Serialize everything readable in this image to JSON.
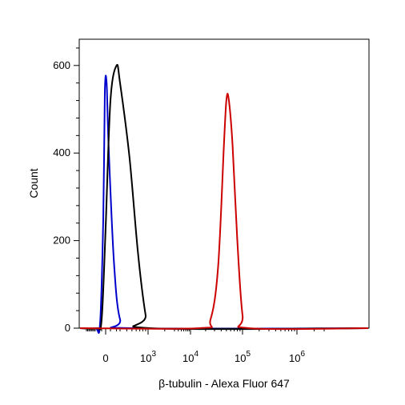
{
  "chart_data": {
    "type": "line",
    "title": "",
    "xlabel": "β-tubulin - Alexa Fluor 647",
    "ylabel": "Count",
    "x_scale": "biexponential",
    "ylim": [
      0,
      660
    ],
    "y_ticks": [
      {
        "value": 0,
        "label": "0"
      },
      {
        "value": 200,
        "label": "200"
      },
      {
        "value": 400,
        "label": "400"
      },
      {
        "value": 600,
        "label": "600"
      }
    ],
    "x_ticks": [
      {
        "value": 0,
        "base": "0",
        "exp": ""
      },
      {
        "value": 1000,
        "base": "10",
        "exp": "3"
      },
      {
        "value": 10000,
        "base": "10",
        "exp": "4"
      },
      {
        "value": 100000,
        "base": "10",
        "exp": "5"
      },
      {
        "value": 1000000,
        "base": "10",
        "exp": "6"
      }
    ],
    "grid": false,
    "legend": "none",
    "series": [
      {
        "color": "#0000cc",
        "x": [
          -300,
          -150,
          -60,
          -20,
          20,
          60,
          150,
          300,
          500
        ],
        "y": [
          0,
          10,
          250,
          540,
          560,
          420,
          150,
          20,
          0
        ]
      },
      {
        "color": "#000000",
        "x": [
          -250,
          -100,
          0,
          100,
          200,
          300,
          450,
          650,
          900,
          1100
        ],
        "y": [
          0,
          20,
          230,
          520,
          600,
          560,
          390,
          170,
          30,
          0
        ]
      },
      {
        "color": "#cc0000",
        "x": [
          15000,
          25000,
          35000,
          45000,
          50000,
          55000,
          65000,
          80000,
          100000,
          130000
        ],
        "y": [
          0,
          20,
          140,
          420,
          520,
          525,
          420,
          200,
          30,
          0
        ]
      }
    ]
  }
}
